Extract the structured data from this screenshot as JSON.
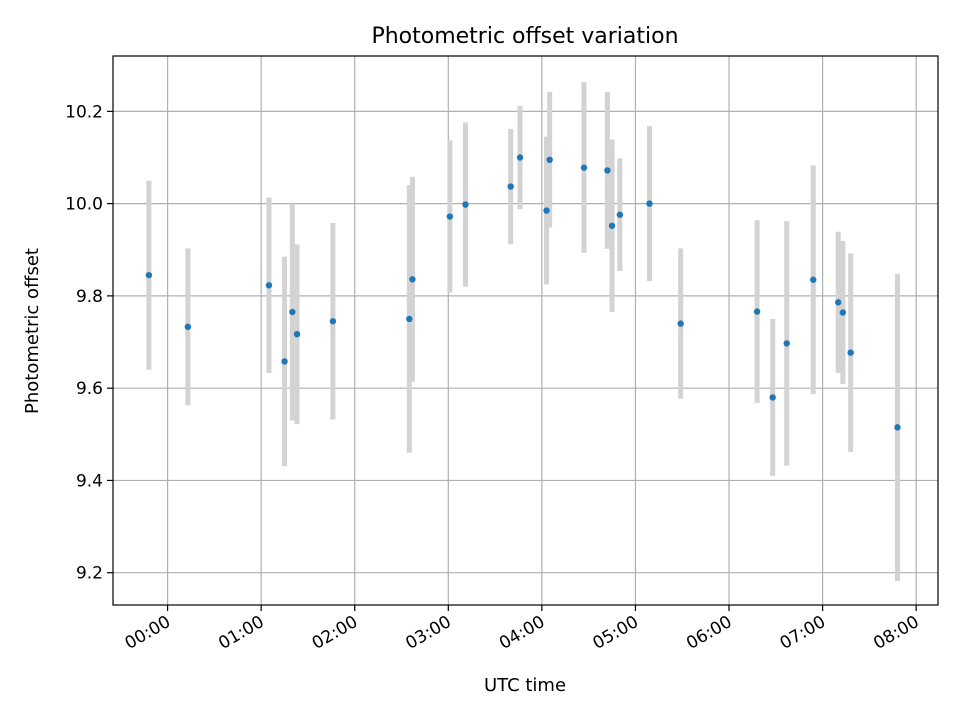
{
  "chart_data": {
    "type": "scatter",
    "title": "Photometric offset variation",
    "xlabel": "UTC time",
    "ylabel": "Photometric offset",
    "x_unit": "HH:MM",
    "xlim": [
      "-00:35",
      "08:14"
    ],
    "ylim": [
      9.13,
      10.32
    ],
    "grid": true,
    "x_ticks": [
      "00:00",
      "01:00",
      "02:00",
      "03:00",
      "04:00",
      "05:00",
      "06:00",
      "07:00",
      "08:00"
    ],
    "y_ticks": [
      9.2,
      9.4,
      9.6,
      9.8,
      10.0,
      10.2
    ],
    "colors": {
      "point": "#1f77b4",
      "errorbar": "#d3d3d3",
      "grid": "#b0b0b0"
    },
    "series": [
      {
        "points": [
          {
            "x": "-00:12",
            "y": 9.845,
            "err": 0.205
          },
          {
            "x": "00:13",
            "y": 9.733,
            "err": 0.17
          },
          {
            "x": "01:05",
            "y": 9.823,
            "err": 0.19
          },
          {
            "x": "01:15",
            "y": 9.658,
            "err": 0.227
          },
          {
            "x": "01:20",
            "y": 9.765,
            "err": 0.235
          },
          {
            "x": "01:23",
            "y": 9.717,
            "err": 0.195
          },
          {
            "x": "01:46",
            "y": 9.745,
            "err": 0.213
          },
          {
            "x": "02:35",
            "y": 9.75,
            "err": 0.29
          },
          {
            "x": "02:37",
            "y": 9.836,
            "err": 0.222
          },
          {
            "x": "03:01",
            "y": 9.972,
            "err": 0.165
          },
          {
            "x": "03:11",
            "y": 9.998,
            "err": 0.178
          },
          {
            "x": "03:40",
            "y": 10.037,
            "err": 0.125
          },
          {
            "x": "03:46",
            "y": 10.1,
            "err": 0.112
          },
          {
            "x": "04:03",
            "y": 9.985,
            "err": 0.16
          },
          {
            "x": "04:05",
            "y": 10.095,
            "err": 0.147
          },
          {
            "x": "04:27",
            "y": 10.078,
            "err": 0.185
          },
          {
            "x": "04:42",
            "y": 10.072,
            "err": 0.17
          },
          {
            "x": "04:45",
            "y": 9.952,
            "err": 0.187
          },
          {
            "x": "04:50",
            "y": 9.976,
            "err": 0.122
          },
          {
            "x": "05:09",
            "y": 10.0,
            "err": 0.168
          },
          {
            "x": "05:29",
            "y": 9.74,
            "err": 0.163
          },
          {
            "x": "06:18",
            "y": 9.766,
            "err": 0.198
          },
          {
            "x": "06:28",
            "y": 9.58,
            "err": 0.17
          },
          {
            "x": "06:37",
            "y": 9.697,
            "err": 0.265
          },
          {
            "x": "06:54",
            "y": 9.835,
            "err": 0.248
          },
          {
            "x": "07:10",
            "y": 9.786,
            "err": 0.153
          },
          {
            "x": "07:13",
            "y": 9.764,
            "err": 0.155
          },
          {
            "x": "07:18",
            "y": 9.677,
            "err": 0.215
          },
          {
            "x": "07:48",
            "y": 9.515,
            "err": 0.333
          }
        ]
      }
    ]
  }
}
